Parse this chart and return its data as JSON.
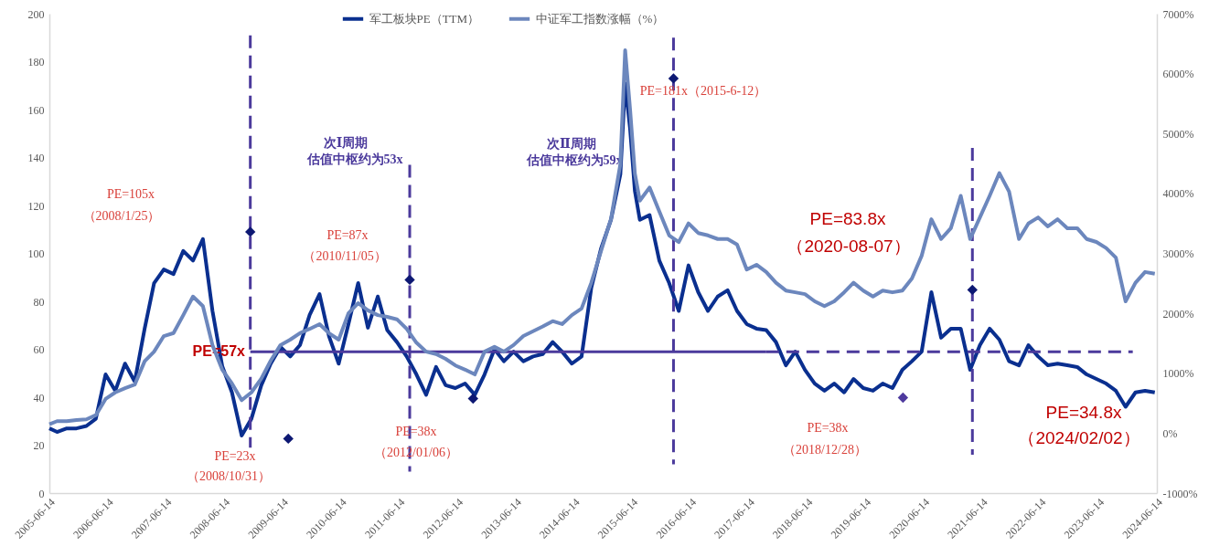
{
  "chart_data": {
    "type": "line",
    "x": [
      "2005-06-14",
      "2005-08",
      "2005-10",
      "2005-12",
      "2006-02",
      "2006-04",
      "2006-06",
      "2006-08",
      "2006-10",
      "2006-12",
      "2007-02",
      "2007-04",
      "2007-06",
      "2007-08",
      "2007-10",
      "2007-12",
      "2008-02",
      "2008-04",
      "2008-06",
      "2008-08",
      "2008-10",
      "2008-12",
      "2009-02",
      "2009-04",
      "2009-06",
      "2009-08",
      "2009-10",
      "2009-12",
      "2010-02",
      "2010-04",
      "2010-06",
      "2010-08",
      "2010-10",
      "2010-12",
      "2011-02",
      "2011-04",
      "2011-06",
      "2011-08",
      "2011-10",
      "2011-12",
      "2012-02",
      "2012-04",
      "2012-06",
      "2012-08",
      "2012-10",
      "2012-12",
      "2013-02",
      "2013-04",
      "2013-06",
      "2013-08",
      "2013-10",
      "2013-12",
      "2014-02",
      "2014-04",
      "2014-06",
      "2014-08",
      "2014-10",
      "2014-12",
      "2015-02",
      "2015-04",
      "2015-05",
      "2015-06",
      "2015-07",
      "2015-08",
      "2015-10",
      "2015-12",
      "2016-02",
      "2016-04",
      "2016-06",
      "2016-08",
      "2016-10",
      "2016-12",
      "2017-02",
      "2017-04",
      "2017-06",
      "2017-08",
      "2017-10",
      "2017-12",
      "2018-02",
      "2018-04",
      "2018-06",
      "2018-08",
      "2018-10",
      "2018-12",
      "2019-02",
      "2019-04",
      "2019-06",
      "2019-08",
      "2019-10",
      "2019-12",
      "2020-02",
      "2020-04",
      "2020-06",
      "2020-08",
      "2020-10",
      "2020-12",
      "2021-02",
      "2021-04",
      "2021-06",
      "2021-08",
      "2021-10",
      "2021-12",
      "2022-02",
      "2022-04",
      "2022-06",
      "2022-08",
      "2022-10",
      "2022-12",
      "2023-02",
      "2023-04",
      "2023-06",
      "2023-08",
      "2023-10",
      "2023-12",
      "2024-02",
      "2024-04",
      "2024-06"
    ],
    "series": [
      {
        "name": "军工板块PE（TTM）",
        "color": "#0a2f8f",
        "values": [
          27,
          25.5,
          27,
          27,
          28,
          31,
          49.5,
          42.7,
          54,
          46.5,
          68.6,
          87.6,
          93.3,
          91.4,
          101,
          97,
          106,
          76,
          53,
          42,
          24,
          31,
          45,
          54,
          61,
          57,
          61.7,
          74.3,
          83,
          65.5,
          54,
          70.5,
          87.6,
          69,
          82,
          68,
          63,
          57,
          49.5,
          41,
          52.6,
          45,
          43.8,
          45.7,
          41,
          49.5,
          60,
          55,
          59,
          55,
          57,
          58,
          63,
          59,
          54,
          57,
          85.7,
          102,
          114,
          133,
          171,
          152,
          126,
          114,
          116,
          97,
          87.6,
          76,
          95,
          83.8,
          76,
          82,
          84.6,
          76,
          70.5,
          68.6,
          68,
          63,
          53.3,
          59,
          51.4,
          45.7,
          42.7,
          45.7,
          42,
          47.6,
          43.8,
          42.7,
          45.7,
          43.8,
          51.4,
          55,
          59,
          83.8,
          64.8,
          68.6,
          68.6,
          51.4,
          61.7,
          68.6,
          64,
          55,
          53.3,
          61.7,
          57,
          53.3,
          54,
          53.3,
          52.6,
          49.5,
          47.6,
          45.7,
          42.7,
          36,
          42,
          42.7,
          42
        ]
      },
      {
        "name": "中证军工指数涨幅（%）",
        "color": "#6c87bd",
        "axis": "y2",
        "values": [
          150,
          200,
          200,
          220,
          230,
          300,
          570,
          680,
          750,
          810,
          1200,
          1360,
          1620,
          1670,
          1970,
          2280,
          2120,
          1470,
          1060,
          830,
          550,
          680,
          910,
          1210,
          1470,
          1560,
          1670,
          1740,
          1820,
          1670,
          1560,
          2000,
          2170,
          2050,
          1970,
          1940,
          1900,
          1740,
          1510,
          1360,
          1320,
          1240,
          1130,
          1060,
          980,
          1360,
          1440,
          1360,
          1470,
          1620,
          1700,
          1780,
          1870,
          1820,
          1970,
          2080,
          2510,
          3040,
          3570,
          4490,
          6390,
          5400,
          4330,
          3880,
          4100,
          3700,
          3300,
          3190,
          3500,
          3340,
          3300,
          3240,
          3240,
          3150,
          2730,
          2810,
          2690,
          2510,
          2380,
          2350,
          2320,
          2200,
          2120,
          2200,
          2350,
          2510,
          2380,
          2280,
          2380,
          2350,
          2380,
          2580,
          2960,
          3570,
          3240,
          3420,
          3960,
          3240,
          3600,
          3960,
          4340,
          4030,
          3240,
          3500,
          3600,
          3450,
          3570,
          3420,
          3420,
          3240,
          3190,
          3090,
          2930,
          2200,
          2510,
          2690,
          2660
        ]
      },
      {
        "type": "line",
        "color": "#4b3a9c",
        "line_style": "solid",
        "x": [
          "2008-11-24",
          "2017-10-01"
        ],
        "values": [
          59,
          59
        ]
      },
      {
        "type": "line",
        "color": "#4b3a9c",
        "line_style": "dashed",
        "x": [
          "2017-10-01",
          "2024-01-15"
        ],
        "values": [
          59,
          59
        ]
      },
      {
        "type": "line",
        "color": "#4b3a9c",
        "line_style": "dashed",
        "x": [
          "2008-11-24",
          "2008-11-24"
        ],
        "values": [
          191,
          19
        ]
      },
      {
        "type": "line",
        "color": "#4b3a9c",
        "line_style": "dashed",
        "x": [
          "2011-08-20",
          "2011-08-20"
        ],
        "values": [
          137,
          9
        ]
      },
      {
        "type": "line",
        "color": "#4b3a9c",
        "line_style": "dashed",
        "x": [
          "2016-02-28",
          "2016-02-28"
        ],
        "values": [
          190,
          12
        ]
      },
      {
        "type": "line",
        "color": "#4b3a9c",
        "line_style": "dashed",
        "x": [
          "2021-04-15",
          "2021-04-15"
        ],
        "values": [
          144,
          16
        ]
      },
      {
        "type": "scatter",
        "marker": "diamond",
        "colors": [
          "#0d1873",
          "#0d1873",
          "#0d1873",
          "#0d1873",
          "#0d1873",
          "#4e3a9e",
          "#0d1873"
        ],
        "x": [
          "2008-11-24",
          "2009-07-20",
          "2011-08-20",
          "2012-09-20",
          "2016-02-28",
          "2020-02-05",
          "2021-04-15"
        ],
        "values": [
          109,
          22.7,
          89,
          39.4,
          173,
          39.8,
          84.8
        ]
      }
    ],
    "xlim": [
      "2005-06-14",
      "2024-06-14"
    ],
    "xticks": [
      "2005-06-14",
      "2006-06-14",
      "2007-06-14",
      "2008-06-14",
      "2009-06-14",
      "2010-06-14",
      "2011-06-14",
      "2012-06-14",
      "2013-06-14",
      "2014-06-14",
      "2015-06-14",
      "2016-06-14",
      "2017-06-14",
      "2018-06-14",
      "2019-06-14",
      "2020-06-14",
      "2021-06-14",
      "2022-06-14",
      "2023-06-14",
      "2024-06-14"
    ],
    "ylim": [
      0,
      200
    ],
    "yticks": [
      0,
      20,
      40,
      60,
      80,
      100,
      120,
      140,
      160,
      180,
      200
    ],
    "y2lim": [
      -1000,
      7000
    ],
    "y2ticks": [
      {
        "value": -1000,
        "label": "-1000%"
      },
      {
        "value": 0,
        "label": "0%"
      },
      {
        "value": 1000,
        "label": "1000%"
      },
      {
        "value": 2000,
        "label": "2000%"
      },
      {
        "value": 3000,
        "label": "3000%"
      },
      {
        "value": 4000,
        "label": "4000%"
      },
      {
        "value": 5000,
        "label": "5000%"
      },
      {
        "value": 6000,
        "label": "6000%"
      },
      {
        "value": 7000,
        "label": "7000%"
      }
    ],
    "legend": "top",
    "grid": false,
    "annotations": [
      "PE=105x",
      "（2008/1/25）",
      "次Ⅰ周期",
      "估值中枢约为53x",
      "PE=87x",
      "（2010/11/05）",
      "次Ⅱ周期",
      "估值中枢约为59x",
      "PE=181x（2015-6-12）",
      "PE=57x",
      "PE=23x",
      "（2008/10/31）",
      "PE=38x",
      "（2012/01/06）",
      "PE=83.8x",
      "（2020-08-07）",
      "PE=38x",
      "（2018/12/28）",
      "PE=34.8x",
      "（2024/02/02）"
    ]
  }
}
